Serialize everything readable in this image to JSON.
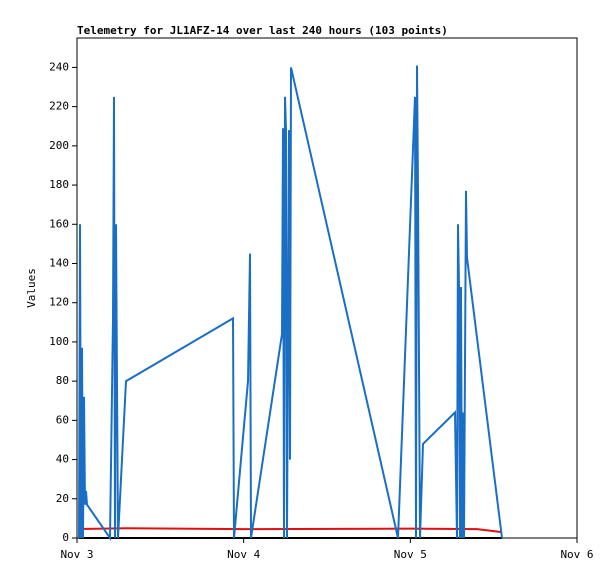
{
  "chart_data": {
    "type": "line",
    "title": "Telemetry for JL1AFZ-14 over last 240 hours (103 points)",
    "y_label": "Values",
    "xlim": [
      3,
      6
    ],
    "xticks": [
      {
        "value": 3,
        "label": "Nov 3"
      },
      {
        "value": 4,
        "label": "Nov 4"
      },
      {
        "value": 5,
        "label": "Nov 5"
      },
      {
        "value": 6,
        "label": "Nov 6"
      }
    ],
    "ylim": [
      0,
      255
    ],
    "yticks": [
      0,
      20,
      40,
      60,
      80,
      100,
      120,
      140,
      160,
      180,
      200,
      220,
      240
    ],
    "series": [
      {
        "color": "#000000",
        "x": [
          3.012,
          5.55
        ],
        "values": [
          0,
          0
        ]
      },
      {
        "color": "#e01010",
        "x": [
          3.012,
          3.3,
          4.0,
          5.0,
          5.4,
          5.55
        ],
        "values": [
          4.6,
          5,
          4.5,
          4.8,
          4.5,
          3
        ]
      },
      {
        "color": "#1a6fc4",
        "x": [
          3.012,
          3.018,
          3.024,
          3.03,
          3.036,
          3.042,
          3.048,
          3.054,
          3.06,
          3.198,
          3.216,
          3.222,
          3.228,
          3.234,
          3.24,
          3.246,
          3.294,
          3.936,
          3.942,
          4.026,
          4.038,
          4.044,
          4.23,
          4.236,
          4.242,
          4.248,
          4.254,
          4.26,
          4.266,
          4.272,
          4.278,
          4.284,
          4.926,
          5.028,
          5.034,
          5.04,
          5.046,
          5.058,
          5.076,
          5.268,
          5.28,
          5.286,
          5.292,
          5.298,
          5.304,
          5.31,
          5.316,
          5.322,
          5.334,
          5.34,
          5.55
        ],
        "values": [
          0,
          160,
          0,
          97,
          0,
          72,
          17,
          24,
          17,
          0,
          112,
          225,
          0,
          160,
          80,
          0,
          80,
          112,
          0,
          80,
          145,
          0,
          104,
          209,
          0,
          225,
          208,
          0,
          104,
          208,
          40,
          240,
          0,
          225,
          0,
          241,
          177,
          0,
          48,
          64,
          0,
          160,
          128,
          0,
          128,
          0,
          64,
          0,
          177,
          143,
          0
        ]
      }
    ]
  }
}
